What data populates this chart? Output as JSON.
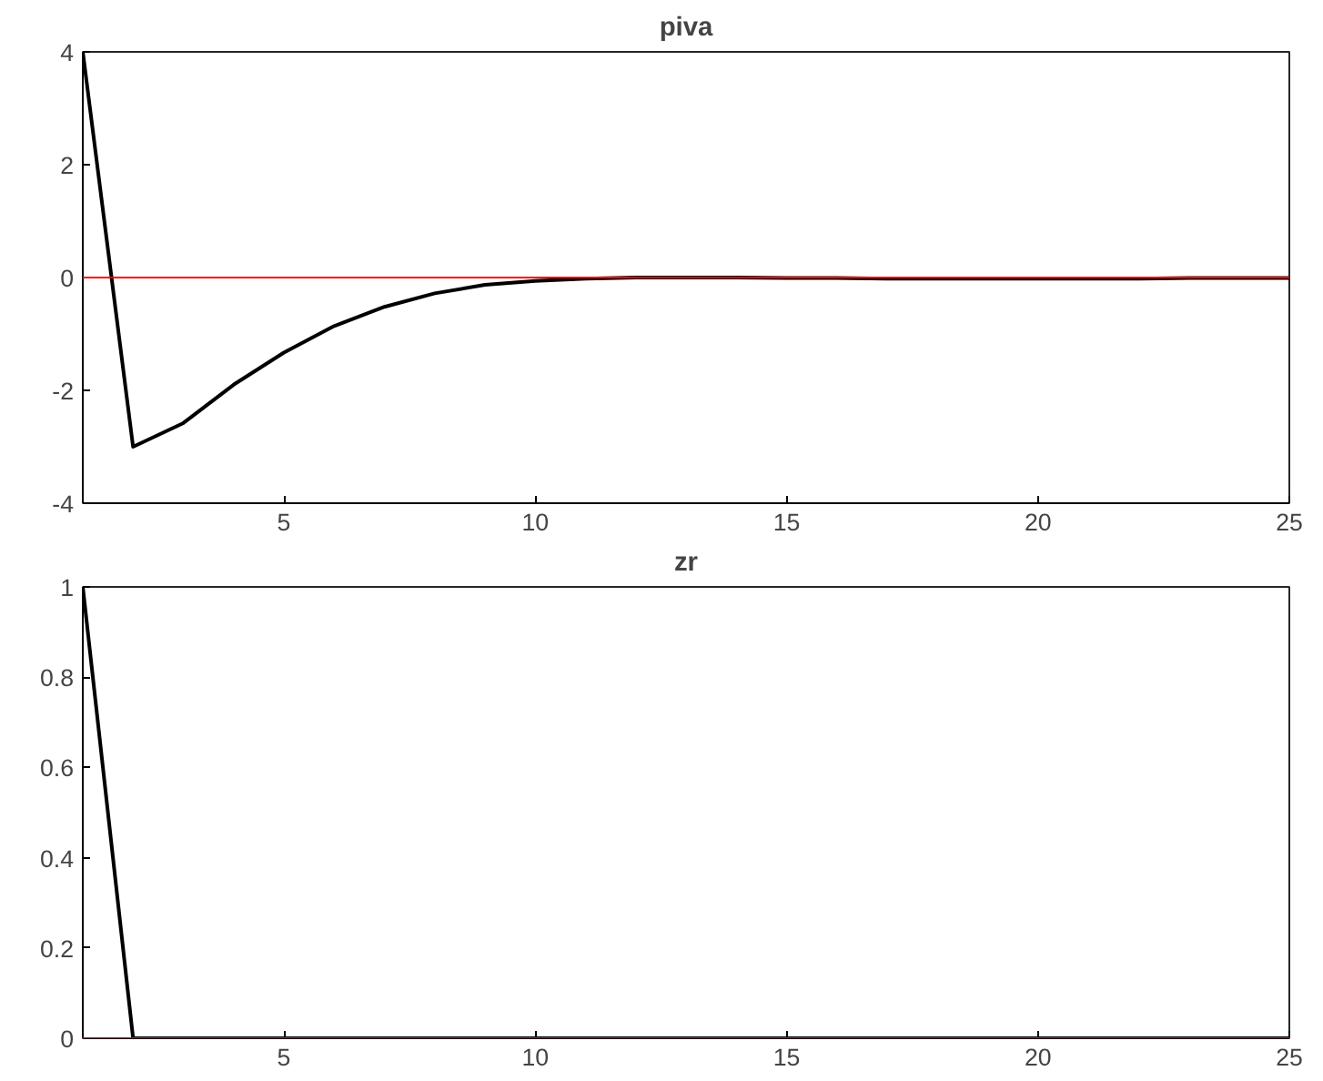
{
  "chart_data": [
    {
      "type": "line",
      "title": "piva",
      "x": [
        1,
        2,
        3,
        4,
        5,
        6,
        7,
        8,
        9,
        10,
        11,
        12,
        13,
        14,
        15,
        16,
        17,
        18,
        19,
        20,
        21,
        22,
        23,
        24,
        25
      ],
      "series": [
        {
          "color": "#000000",
          "values": [
            4,
            -3.0,
            -2.58,
            -1.9,
            -1.33,
            -0.86,
            -0.52,
            -0.28,
            -0.13,
            -0.06,
            -0.02,
            0,
            0,
            0,
            -0.01,
            -0.01,
            -0.02,
            -0.02,
            -0.02,
            -0.02,
            -0.02,
            -0.02,
            -0.01,
            -0.01,
            -0.01
          ]
        }
      ],
      "xlim": [
        1,
        25
      ],
      "ylim": [
        -4,
        4
      ],
      "xticks": [
        5,
        10,
        15,
        20,
        25
      ],
      "yticks": [
        -4,
        -2,
        0,
        2,
        4
      ],
      "grid": false,
      "ref_lines": [
        {
          "axis": "y",
          "value": 0,
          "color": "#ff0000"
        }
      ]
    },
    {
      "type": "line",
      "title": "zr",
      "x": [
        1,
        2,
        3,
        4,
        5,
        6,
        7,
        8,
        9,
        10,
        11,
        12,
        13,
        14,
        15,
        16,
        17,
        18,
        19,
        20,
        21,
        22,
        23,
        24,
        25
      ],
      "series": [
        {
          "color": "#000000",
          "values": [
            1,
            0,
            0,
            0,
            0,
            0,
            0,
            0,
            0,
            0,
            0,
            0,
            0,
            0,
            0,
            0,
            0,
            0,
            0,
            0,
            0,
            0,
            0,
            0,
            0
          ]
        }
      ],
      "xlim": [
        1,
        25
      ],
      "ylim": [
        0,
        1
      ],
      "xticks": [
        5,
        10,
        15,
        20,
        25
      ],
      "yticks": [
        0,
        0.2,
        0.4,
        0.6,
        0.8,
        1
      ],
      "grid": false,
      "ref_lines": [
        {
          "axis": "y",
          "value": 0,
          "color": "#ff0000"
        }
      ]
    }
  ]
}
